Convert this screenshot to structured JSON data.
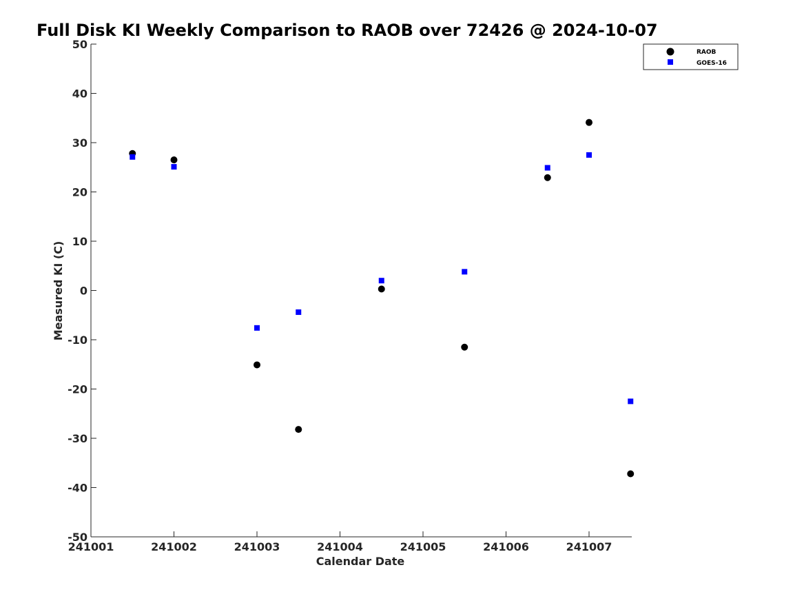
{
  "chart_data": {
    "type": "scatter",
    "title": "Full Disk KI Weekly Comparison to RAOB over 72426 @ 2024-10-07",
    "xlabel": "Calendar Date",
    "ylabel": "Measured KI (C)",
    "xticks": [
      "241001",
      "241002",
      "241003",
      "241004",
      "241005",
      "241006",
      "241007"
    ],
    "yticks": [
      "50",
      "40",
      "30",
      "20",
      "10",
      "0",
      "-10",
      "-20",
      "-30",
      "-40",
      "-50"
    ],
    "ylim": [
      -50,
      50
    ],
    "xlim": [
      "241001",
      "241007 12Z"
    ],
    "grid": false,
    "legend_position": "top-right",
    "series": [
      {
        "name": "RAOB",
        "marker": "circle",
        "color": "#000000",
        "points": [
          {
            "x": "241001 12Z",
            "y": 27.8
          },
          {
            "x": "241002 00Z",
            "y": 26.5
          },
          {
            "x": "241003 00Z",
            "y": -15.1
          },
          {
            "x": "241003 12Z",
            "y": -28.2
          },
          {
            "x": "241004 12Z",
            "y": 0.3
          },
          {
            "x": "241005 12Z",
            "y": -11.5
          },
          {
            "x": "241006 12Z",
            "y": 22.9
          },
          {
            "x": "241007 00Z",
            "y": 34.1
          },
          {
            "x": "241007 12Z",
            "y": -37.2
          }
        ]
      },
      {
        "name": "GOES-16",
        "marker": "square",
        "color": "#0000ff",
        "points": [
          {
            "x": "241001 12Z",
            "y": 27.1
          },
          {
            "x": "241002 00Z",
            "y": 25.1
          },
          {
            "x": "241003 00Z",
            "y": -7.6
          },
          {
            "x": "241003 12Z",
            "y": -4.4
          },
          {
            "x": "241004 12Z",
            "y": 2.0
          },
          {
            "x": "241005 12Z",
            "y": 3.8
          },
          {
            "x": "241006 12Z",
            "y": 24.9
          },
          {
            "x": "241007 00Z",
            "y": 27.5
          },
          {
            "x": "241007 12Z",
            "y": -22.5
          }
        ]
      }
    ]
  }
}
